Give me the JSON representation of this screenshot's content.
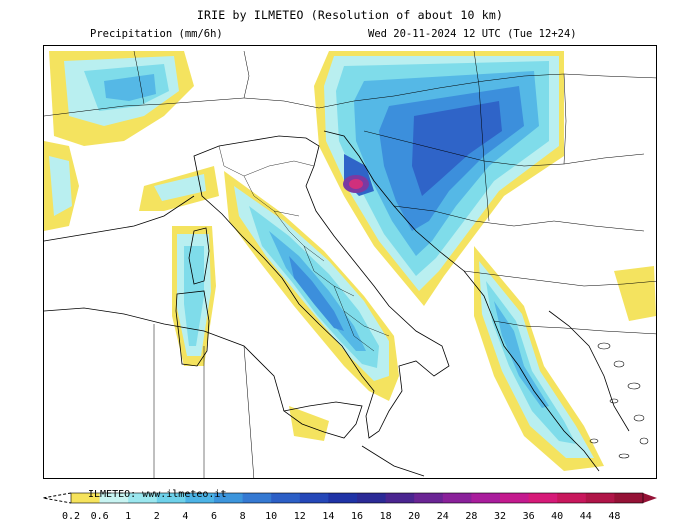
{
  "header": {
    "title": "IRIE by ILMETEO (Resolution of about 10 km)",
    "variable": "Precipitation (mm/6h)",
    "valid_time": "Wed 20-11-2024 12 UTC (Tue 12+24)"
  },
  "legend": {
    "watermark": "ILMETEO: www.ilmeteo.it",
    "labels": [
      "0.2",
      "0.6",
      "1",
      "2",
      "4",
      "6",
      "8",
      "10",
      "12",
      "14",
      "16",
      "18",
      "20",
      "24",
      "28",
      "32",
      "36",
      "40",
      "44",
      "48"
    ],
    "colors": [
      "#f6e35c",
      "#c8f4f2",
      "#9be7ef",
      "#6ed1ea",
      "#4cb3e6",
      "#3c95dc",
      "#3579d2",
      "#2c5fc6",
      "#2547b8",
      "#1f33a6",
      "#2b2a96",
      "#4a2590",
      "#6a2494",
      "#8a219a",
      "#a91d9c",
      "#c41a8e",
      "#d61a78",
      "#c8175c",
      "#b01548",
      "#951236"
    ]
  },
  "map": {
    "precip_colors": {
      "yellow": "#f4e35f",
      "cyan_light": "#b9eff0",
      "cyan": "#7fdcea",
      "blue_light": "#55b8e6",
      "blue": "#3c8fdc",
      "blue_dark": "#2f64c8",
      "purple": "#7a3aa2",
      "magenta": "#d0307c"
    }
  }
}
